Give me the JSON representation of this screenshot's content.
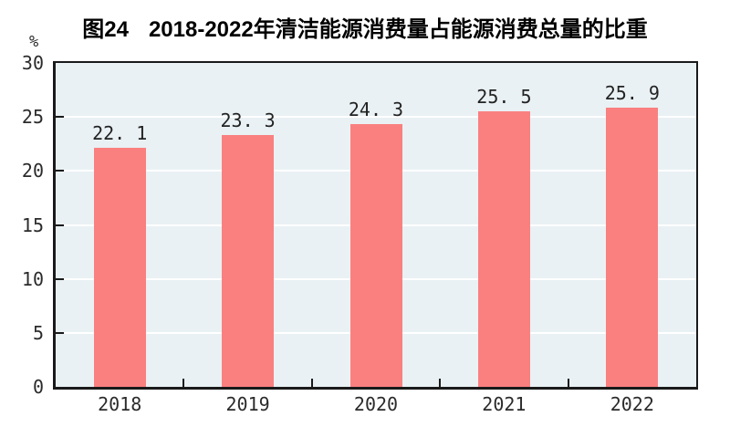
{
  "header": {
    "figure_label": "图24",
    "title": "2018-2022年清洁能源消费量占能源消费总量的比重",
    "unit_label": "%"
  },
  "chart_data": {
    "type": "bar",
    "title": "图24 2018-2022年清洁能源消费量占能源消费总量的比重",
    "categories": [
      "2018",
      "2019",
      "2020",
      "2021",
      "2022"
    ],
    "values": [
      22.1,
      23.3,
      24.3,
      25.5,
      25.9
    ],
    "value_labels": [
      "22. 1",
      "23. 3",
      "24. 3",
      "25. 5",
      "25. 9"
    ],
    "xlabel": "",
    "ylabel": "%",
    "ylim": [
      0,
      30
    ],
    "yticks": [
      0,
      5,
      10,
      15,
      20,
      25,
      30
    ],
    "grid": "horizontal",
    "legend": "none",
    "colors": {
      "bar": "#fa8080",
      "plot_background": "#e9f1f4",
      "gridline": "#ffffff",
      "axis": "#1a1a1a",
      "tick_label": "#2b2b2b",
      "title": "#000000"
    }
  }
}
